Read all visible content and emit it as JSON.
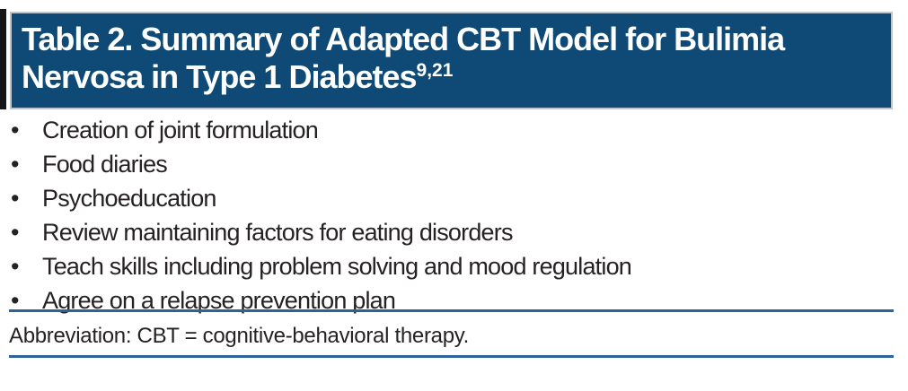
{
  "theme": {
    "header_bg": "#0e4a75",
    "header_border": "#b9c7d3",
    "rule_color": "#2d6396",
    "text_color": "#262223",
    "header_text_color": "#ffffff"
  },
  "table": {
    "title_line1": "Table 2. Summary of Adapted CBT Model for Bulimia",
    "title_line2": "Nervosa in Type 1 Diabetes",
    "title_superscript": "9,21",
    "bullet_glyph": "•",
    "items": [
      "Creation of joint formulation",
      "Food diaries",
      "Psychoeducation",
      "Review maintaining factors for eating disorders",
      "Teach skills including problem solving and mood regulation",
      "Agree on a relapse prevention plan"
    ],
    "footnote": "Abbreviation: CBT = cognitive-behavioral therapy."
  }
}
